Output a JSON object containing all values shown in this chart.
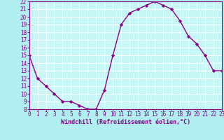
{
  "x": [
    0,
    1,
    2,
    3,
    4,
    5,
    6,
    7,
    8,
    9,
    10,
    11,
    12,
    13,
    14,
    15,
    16,
    17,
    18,
    19,
    20,
    21,
    22,
    23
  ],
  "y": [
    15,
    12,
    11,
    10,
    9,
    9,
    8.5,
    8,
    8,
    10.5,
    15,
    19,
    20.5,
    21,
    21.5,
    22,
    21.5,
    21,
    19.5,
    17.5,
    16.5,
    15,
    13,
    13
  ],
  "color": "#880088",
  "bg_color": "#b0eef0",
  "plot_bg_color": "#c8f5f5",
  "grid_color": "#ffffff",
  "xlabel": "Windchill (Refroidissement éolien,°C)",
  "ylim": [
    8,
    22
  ],
  "xlim": [
    0,
    23
  ],
  "yticks": [
    8,
    9,
    10,
    11,
    12,
    13,
    14,
    15,
    16,
    17,
    18,
    19,
    20,
    21,
    22
  ],
  "xticks": [
    0,
    1,
    2,
    3,
    4,
    5,
    6,
    7,
    8,
    9,
    10,
    11,
    12,
    13,
    14,
    15,
    16,
    17,
    18,
    19,
    20,
    21,
    22,
    23
  ],
  "marker": "D",
  "markersize": 2.2,
  "linewidth": 1.0,
  "tick_fontsize": 5.5,
  "xlabel_fontsize": 6.0
}
